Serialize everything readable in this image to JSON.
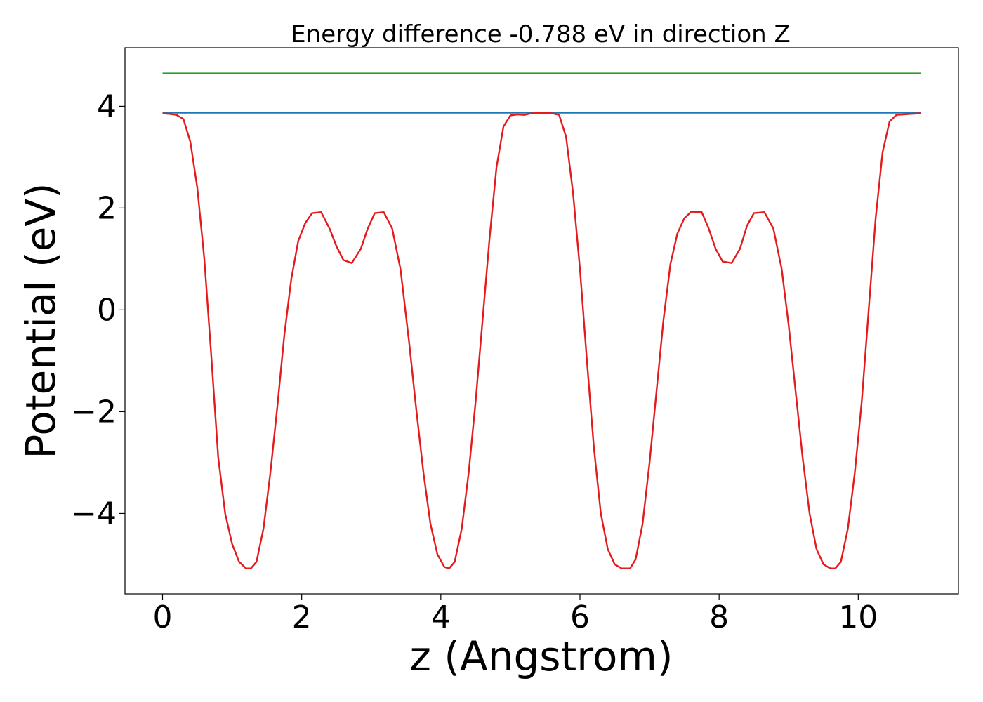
{
  "chart_data": {
    "type": "line",
    "title": "Energy difference -0.788 eV in direction Z",
    "xlabel": "z (Angstrom)",
    "ylabel": "Potential (eV)",
    "xlim": [
      -0.54,
      11.44
    ],
    "ylim": [
      -5.58,
      5.15
    ],
    "xticks": [
      0,
      2,
      4,
      6,
      8,
      10
    ],
    "yticks": [
      -4,
      -2,
      0,
      2,
      4
    ],
    "xtick_labels": [
      "0",
      "2",
      "4",
      "6",
      "8",
      "10"
    ],
    "ytick_labels": [
      "−4",
      "−2",
      "0",
      "2",
      "4"
    ],
    "grid": false,
    "series": [
      {
        "color": "#2ca02c",
        "x": [
          0,
          10.9
        ],
        "y": [
          4.65,
          4.65
        ]
      },
      {
        "color": "#1f77b4",
        "x": [
          0,
          10.9
        ],
        "y": [
          3.87,
          3.87
        ]
      },
      {
        "color": "#e41a1c",
        "x": [
          0,
          0.1,
          0.2,
          0.3,
          0.4,
          0.5,
          0.6,
          0.7,
          0.8,
          0.9,
          1.0,
          1.1,
          1.2,
          1.27,
          1.35,
          1.45,
          1.55,
          1.65,
          1.75,
          1.85,
          1.95,
          2.05,
          2.15,
          2.28,
          2.4,
          2.5,
          2.6,
          2.72,
          2.85,
          2.95,
          3.05,
          3.18,
          3.3,
          3.42,
          3.55,
          3.65,
          3.75,
          3.85,
          3.95,
          4.05,
          4.12,
          4.2,
          4.3,
          4.4,
          4.5,
          4.6,
          4.7,
          4.8,
          4.9,
          5.0,
          5.1,
          5.2,
          5.3,
          5.45,
          5.6,
          5.7,
          5.8,
          5.9,
          6.0,
          6.1,
          6.2,
          6.3,
          6.4,
          6.5,
          6.6,
          6.72,
          6.8,
          6.9,
          7.0,
          7.1,
          7.2,
          7.3,
          7.4,
          7.5,
          7.6,
          7.75,
          7.85,
          7.95,
          8.05,
          8.18,
          8.3,
          8.4,
          8.5,
          8.65,
          8.78,
          8.9,
          9.0,
          9.1,
          9.2,
          9.3,
          9.4,
          9.5,
          9.6,
          9.67,
          9.75,
          9.85,
          9.95,
          10.05,
          10.15,
          10.25,
          10.35,
          10.45,
          10.55,
          10.65,
          10.75,
          10.9
        ],
        "y": [
          3.86,
          3.85,
          3.83,
          3.75,
          3.3,
          2.4,
          1.0,
          -0.9,
          -2.9,
          -4.0,
          -4.6,
          -4.95,
          -5.08,
          -5.08,
          -4.95,
          -4.3,
          -3.2,
          -1.9,
          -0.5,
          0.6,
          1.35,
          1.7,
          1.9,
          1.92,
          1.6,
          1.25,
          0.98,
          0.92,
          1.2,
          1.6,
          1.9,
          1.92,
          1.6,
          0.8,
          -0.7,
          -2.0,
          -3.2,
          -4.2,
          -4.8,
          -5.05,
          -5.08,
          -4.95,
          -4.3,
          -3.2,
          -1.8,
          -0.2,
          1.4,
          2.8,
          3.6,
          3.82,
          3.84,
          3.83,
          3.86,
          3.87,
          3.86,
          3.83,
          3.4,
          2.3,
          0.8,
          -1.0,
          -2.7,
          -4.0,
          -4.7,
          -5.0,
          -5.08,
          -5.08,
          -4.9,
          -4.2,
          -3.0,
          -1.6,
          -0.2,
          0.9,
          1.5,
          1.8,
          1.93,
          1.92,
          1.6,
          1.2,
          0.95,
          0.92,
          1.2,
          1.65,
          1.9,
          1.92,
          1.6,
          0.8,
          -0.3,
          -1.6,
          -2.9,
          -4.0,
          -4.7,
          -5.0,
          -5.08,
          -5.08,
          -4.95,
          -4.3,
          -3.2,
          -1.8,
          0.0,
          1.8,
          3.1,
          3.7,
          3.83,
          3.84,
          3.85,
          3.86
        ]
      }
    ]
  }
}
